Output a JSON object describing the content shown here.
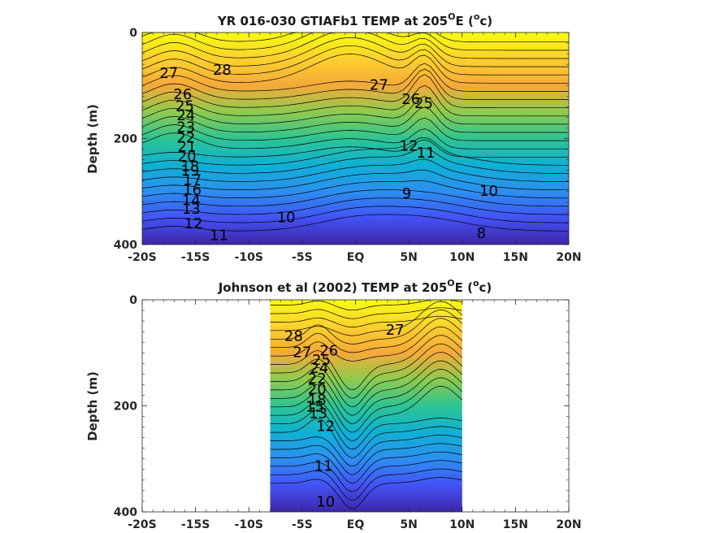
{
  "chart_data": [
    {
      "type": "contour",
      "title_main": "YR 016-030 GTIAFb1 TEMP at 205",
      "title_sup": "O",
      "title_end": "E (",
      "title_unit_sup": "o",
      "title_unit_end": "c)",
      "ylabel": "Depth (m)",
      "xlim": [
        -20,
        20
      ],
      "ylim": [
        0,
        400
      ],
      "y_reversed": true,
      "x_ticks": [
        -20,
        -15,
        -10,
        -5,
        0,
        5,
        10,
        15,
        20
      ],
      "x_tick_labels": [
        "-20S",
        "-15S",
        "-10S",
        "-5S",
        "EQ",
        "5N",
        "10N",
        "15N",
        "20N"
      ],
      "y_ticks": [
        0,
        200,
        400
      ],
      "y_tick_labels": [
        "0",
        "200",
        "400"
      ],
      "data_xlim": [
        -20,
        20
      ],
      "colormap": [
        "#3e26a8",
        "#4352f4",
        "#2c8ff0",
        "#0fb1d3",
        "#2ec492",
        "#8ecb4e",
        "#f5a93a",
        "#fbd12e",
        "#f9fb0e"
      ],
      "contour_labels": [
        {
          "text": "28",
          "x": -12.5,
          "y": 72
        },
        {
          "text": "27",
          "x": -17.5,
          "y": 78
        },
        {
          "text": "27",
          "x": 2.2,
          "y": 100
        },
        {
          "text": "26",
          "x": -16.2,
          "y": 118
        },
        {
          "text": "26",
          "x": 5.2,
          "y": 127
        },
        {
          "text": "25",
          "x": -16.0,
          "y": 140
        },
        {
          "text": "25",
          "x": 6.4,
          "y": 135
        },
        {
          "text": "24",
          "x": -15.9,
          "y": 158
        },
        {
          "text": "23",
          "x": -15.9,
          "y": 180
        },
        {
          "text": "22",
          "x": -15.9,
          "y": 200
        },
        {
          "text": "21",
          "x": -15.8,
          "y": 217
        },
        {
          "text": "20",
          "x": -15.8,
          "y": 235
        },
        {
          "text": "18",
          "x": -15.5,
          "y": 254
        },
        {
          "text": "19",
          "x": -15.5,
          "y": 262
        },
        {
          "text": "17",
          "x": -15.3,
          "y": 280
        },
        {
          "text": "16",
          "x": -15.3,
          "y": 298
        },
        {
          "text": "14",
          "x": -15.4,
          "y": 318
        },
        {
          "text": "13",
          "x": -15.4,
          "y": 334
        },
        {
          "text": "12",
          "x": -15.2,
          "y": 362
        },
        {
          "text": "11",
          "x": -12.8,
          "y": 384
        },
        {
          "text": "10",
          "x": -6.5,
          "y": 350
        },
        {
          "text": "9",
          "x": 4.8,
          "y": 305
        },
        {
          "text": "10",
          "x": 12.5,
          "y": 300
        },
        {
          "text": "8",
          "x": 11.8,
          "y": 380
        },
        {
          "text": "11",
          "x": 6.6,
          "y": 228
        },
        {
          "text": "12",
          "x": 5.0,
          "y": 215
        }
      ]
    },
    {
      "type": "contour",
      "title_main": "Johnson et al (2002) TEMP at 205",
      "title_sup": "O",
      "title_end": "E (",
      "title_unit_sup": "o",
      "title_unit_end": "c)",
      "ylabel": "Depth (m)",
      "xlim": [
        -20,
        20
      ],
      "ylim": [
        0,
        400
      ],
      "y_reversed": true,
      "x_ticks": [
        -20,
        -15,
        -10,
        -5,
        0,
        5,
        10,
        15,
        20
      ],
      "x_tick_labels": [
        "-20S",
        "-15S",
        "-10S",
        "-5S",
        "EQ",
        "5N",
        "10N",
        "15N",
        "20N"
      ],
      "y_ticks": [
        0,
        200,
        400
      ],
      "y_tick_labels": [
        "0",
        "200",
        "400"
      ],
      "data_xlim": [
        -8,
        10
      ],
      "colormap": [
        "#3e26a8",
        "#4352f4",
        "#2c8ff0",
        "#0fb1d3",
        "#2ec492",
        "#8ecb4e",
        "#f5a93a",
        "#fbd12e",
        "#f9fb0e"
      ],
      "contour_labels": [
        {
          "text": "28",
          "x": -5.8,
          "y": 70
        },
        {
          "text": "27",
          "x": -5.0,
          "y": 100
        },
        {
          "text": "27",
          "x": 3.7,
          "y": 58
        },
        {
          "text": "26",
          "x": -2.5,
          "y": 97
        },
        {
          "text": "25",
          "x": -3.2,
          "y": 115
        },
        {
          "text": "24",
          "x": -3.4,
          "y": 130
        },
        {
          "text": "22",
          "x": -3.6,
          "y": 150
        },
        {
          "text": "20",
          "x": -3.6,
          "y": 170
        },
        {
          "text": "18",
          "x": -3.6,
          "y": 190
        },
        {
          "text": "15",
          "x": -3.8,
          "y": 203
        },
        {
          "text": "13",
          "x": -3.5,
          "y": 215
        },
        {
          "text": "12",
          "x": -2.8,
          "y": 240
        },
        {
          "text": "11",
          "x": -3.0,
          "y": 315
        },
        {
          "text": "10",
          "x": -2.8,
          "y": 382
        }
      ]
    }
  ]
}
